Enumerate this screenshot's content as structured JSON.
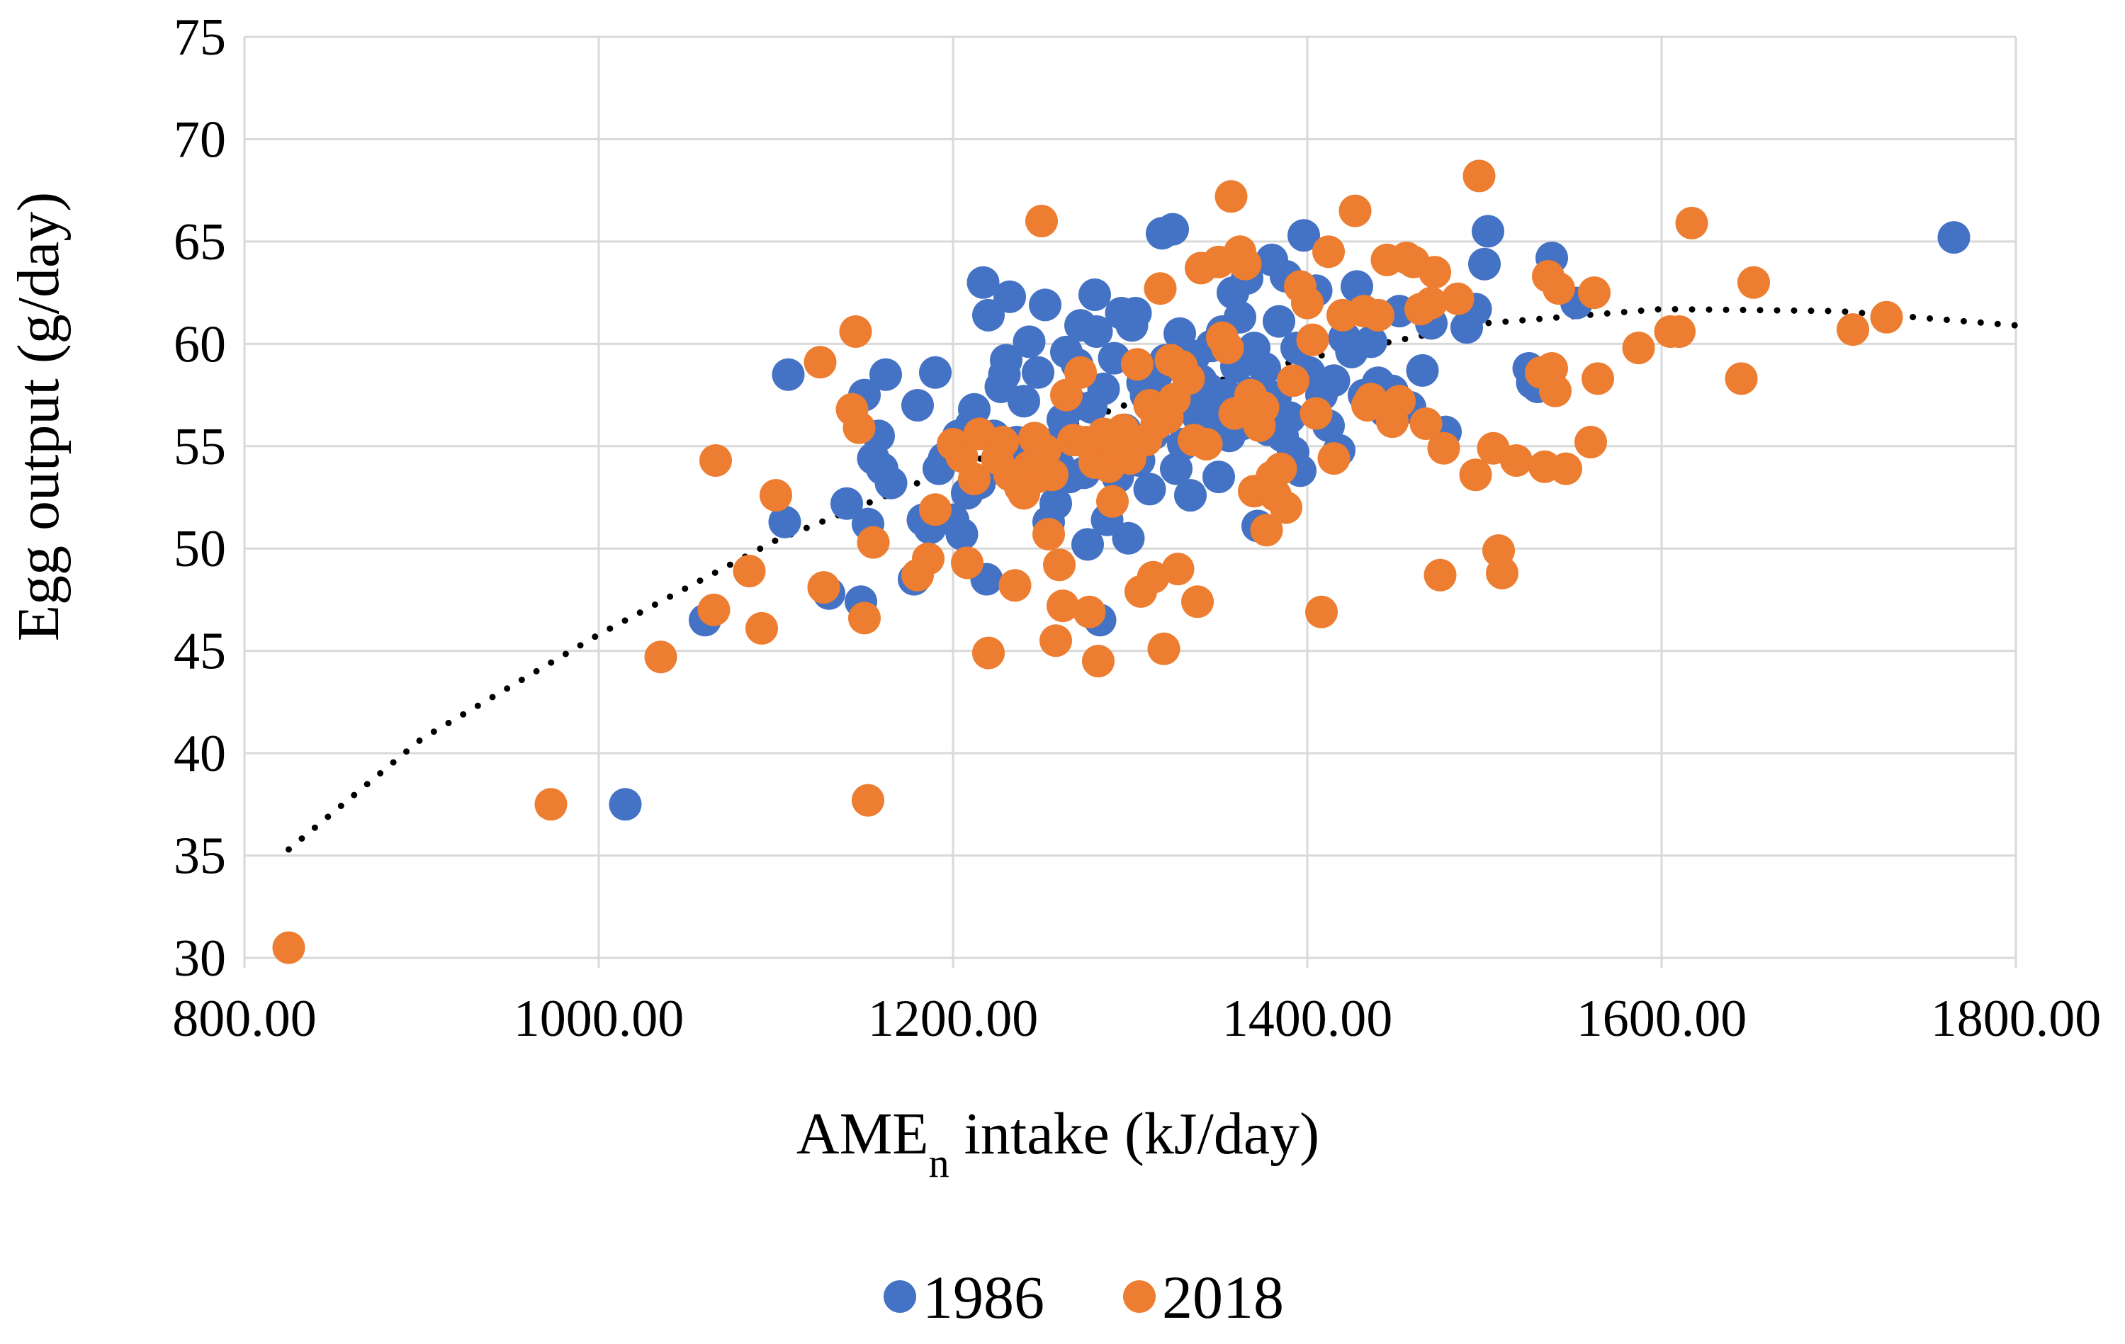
{
  "chart_data": {
    "type": "scatter",
    "title": "",
    "xlabel": "AMEn intake (kJ/day)",
    "xlabel_main": "AME",
    "xlabel_sub": "n",
    "xlabel_rest": " intake (kJ/day)",
    "ylabel": "Egg output (g/day)",
    "xlim": [
      800,
      1800
    ],
    "ylim": [
      30,
      75
    ],
    "xticks": [
      "800.00",
      "1000.00",
      "1200.00",
      "1400.00",
      "1600.00",
      "1800.00"
    ],
    "yticks": [
      "30",
      "35",
      "40",
      "45",
      "50",
      "55",
      "60",
      "65",
      "70",
      "75"
    ],
    "grid": true,
    "legend_position": "bottom",
    "trendline": {
      "style": "dotted",
      "color": "#000000",
      "points": [
        [
          825,
          35.3
        ],
        [
          900,
          40.7
        ],
        [
          1000,
          45.8
        ],
        [
          1100,
          50.4
        ],
        [
          1200,
          53.9
        ],
        [
          1300,
          57.1
        ],
        [
          1400,
          59.3
        ],
        [
          1500,
          61.0
        ],
        [
          1600,
          61.7
        ],
        [
          1700,
          61.6
        ],
        [
          1800,
          60.9
        ]
      ]
    },
    "series": [
      {
        "name": "1986",
        "color": "#4472c4",
        "points": [
          [
            1015,
            37.5
          ],
          [
            1060,
            46.5
          ],
          [
            1105,
            51.3
          ],
          [
            1107,
            58.5
          ],
          [
            1130,
            47.8
          ],
          [
            1140,
            52.2
          ],
          [
            1148,
            47.4
          ],
          [
            1150,
            57.5
          ],
          [
            1152,
            51.2
          ],
          [
            1155,
            54.4
          ],
          [
            1158,
            55.5
          ],
          [
            1160,
            53.9
          ],
          [
            1162,
            58.5
          ],
          [
            1165,
            53.2
          ],
          [
            1178,
            48.5
          ],
          [
            1180,
            57.0
          ],
          [
            1183,
            51.4
          ],
          [
            1187,
            51.0
          ],
          [
            1190,
            58.6
          ],
          [
            1192,
            53.9
          ],
          [
            1195,
            54.4
          ],
          [
            1200,
            51.4
          ],
          [
            1203,
            55.5
          ],
          [
            1205,
            50.7
          ],
          [
            1208,
            52.7
          ],
          [
            1210,
            56.0
          ],
          [
            1212,
            56.8
          ],
          [
            1215,
            53.2
          ],
          [
            1217,
            63.0
          ],
          [
            1219,
            48.5
          ],
          [
            1220,
            61.4
          ],
          [
            1223,
            55.5
          ],
          [
            1225,
            54.4
          ],
          [
            1227,
            57.9
          ],
          [
            1229,
            58.5
          ],
          [
            1230,
            59.2
          ],
          [
            1232,
            62.3
          ],
          [
            1234,
            54.6
          ],
          [
            1236,
            55.2
          ],
          [
            1238,
            53.0
          ],
          [
            1240,
            57.2
          ],
          [
            1243,
            60.1
          ],
          [
            1246,
            53.9
          ],
          [
            1248,
            58.6
          ],
          [
            1250,
            55.0
          ],
          [
            1252,
            61.9
          ],
          [
            1254,
            51.3
          ],
          [
            1256,
            55.1
          ],
          [
            1258,
            52.2
          ],
          [
            1260,
            54.0
          ],
          [
            1262,
            56.3
          ],
          [
            1264,
            59.6
          ],
          [
            1266,
            53.5
          ],
          [
            1268,
            57.0
          ],
          [
            1270,
            59.0
          ],
          [
            1272,
            60.9
          ],
          [
            1274,
            53.7
          ],
          [
            1276,
            50.2
          ],
          [
            1278,
            56.9
          ],
          [
            1280,
            62.4
          ],
          [
            1281,
            60.6
          ],
          [
            1283,
            46.5
          ],
          [
            1285,
            57.8
          ],
          [
            1287,
            51.4
          ],
          [
            1289,
            55.4
          ],
          [
            1291,
            59.3
          ],
          [
            1293,
            53.5
          ],
          [
            1295,
            61.5
          ],
          [
            1297,
            55.8
          ],
          [
            1299,
            50.5
          ],
          [
            1301,
            60.9
          ],
          [
            1303,
            61.5
          ],
          [
            1305,
            54.3
          ],
          [
            1307,
            58.1
          ],
          [
            1309,
            57.5
          ],
          [
            1311,
            52.9
          ],
          [
            1313,
            55.6
          ],
          [
            1315,
            58.5
          ],
          [
            1318,
            65.4
          ],
          [
            1320,
            59.2
          ],
          [
            1322,
            57.1
          ],
          [
            1324,
            65.6
          ],
          [
            1326,
            53.9
          ],
          [
            1328,
            60.5
          ],
          [
            1330,
            55.1
          ],
          [
            1332,
            57.6
          ],
          [
            1334,
            52.6
          ],
          [
            1336,
            59.4
          ],
          [
            1338,
            56.5
          ],
          [
            1340,
            58.2
          ],
          [
            1342,
            55.7
          ],
          [
            1344,
            57.8
          ],
          [
            1346,
            59.9
          ],
          [
            1348,
            56.3
          ],
          [
            1350,
            53.5
          ],
          [
            1352,
            60.6
          ],
          [
            1354,
            57.5
          ],
          [
            1356,
            55.5
          ],
          [
            1358,
            62.5
          ],
          [
            1360,
            58.9
          ],
          [
            1362,
            61.3
          ],
          [
            1364,
            56.1
          ],
          [
            1366,
            63.2
          ],
          [
            1368,
            57.6
          ],
          [
            1370,
            59.8
          ],
          [
            1372,
            51.1
          ],
          [
            1374,
            56.4
          ],
          [
            1376,
            58.8
          ],
          [
            1378,
            55.8
          ],
          [
            1380,
            64.1
          ],
          [
            1382,
            57.4
          ],
          [
            1384,
            61.1
          ],
          [
            1386,
            55.5
          ],
          [
            1388,
            63.3
          ],
          [
            1390,
            56.4
          ],
          [
            1392,
            54.7
          ],
          [
            1394,
            59.8
          ],
          [
            1396,
            53.8
          ],
          [
            1398,
            65.3
          ],
          [
            1401,
            58.6
          ],
          [
            1405,
            62.6
          ],
          [
            1408,
            57.5
          ],
          [
            1412,
            56.0
          ],
          [
            1415,
            58.2
          ],
          [
            1418,
            54.8
          ],
          [
            1421,
            60.3
          ],
          [
            1425,
            59.6
          ],
          [
            1428,
            62.8
          ],
          [
            1432,
            57.5
          ],
          [
            1436,
            60.1
          ],
          [
            1440,
            58.1
          ],
          [
            1444,
            56.7
          ],
          [
            1448,
            57.7
          ],
          [
            1452,
            61.6
          ],
          [
            1458,
            56.9
          ],
          [
            1465,
            58.7
          ],
          [
            1470,
            61.0
          ],
          [
            1478,
            55.7
          ],
          [
            1490,
            60.8
          ],
          [
            1495,
            61.7
          ],
          [
            1500,
            63.9
          ],
          [
            1502,
            65.5
          ],
          [
            1525,
            58.8
          ],
          [
            1527,
            58.1
          ],
          [
            1530,
            57.9
          ],
          [
            1538,
            64.2
          ],
          [
            1552,
            62.0
          ],
          [
            1765,
            65.2
          ]
        ]
      },
      {
        "name": "2018",
        "color": "#ed7d31",
        "points": [
          [
            825,
            30.5
          ],
          [
            973,
            37.5
          ],
          [
            1035,
            44.7
          ],
          [
            1065,
            47.0
          ],
          [
            1066,
            54.3
          ],
          [
            1085,
            48.9
          ],
          [
            1092,
            46.1
          ],
          [
            1100,
            52.6
          ],
          [
            1125,
            59.1
          ],
          [
            1127,
            48.1
          ],
          [
            1143,
            56.8
          ],
          [
            1145,
            60.6
          ],
          [
            1147,
            55.9
          ],
          [
            1150,
            46.6
          ],
          [
            1152,
            37.7
          ],
          [
            1155,
            50.3
          ],
          [
            1180,
            48.7
          ],
          [
            1186,
            49.5
          ],
          [
            1190,
            51.9
          ],
          [
            1200,
            55.1
          ],
          [
            1205,
            54.5
          ],
          [
            1208,
            49.3
          ],
          [
            1212,
            53.4
          ],
          [
            1215,
            55.6
          ],
          [
            1220,
            44.9
          ],
          [
            1225,
            54.4
          ],
          [
            1228,
            55.2
          ],
          [
            1232,
            53.6
          ],
          [
            1235,
            48.2
          ],
          [
            1238,
            53.0
          ],
          [
            1240,
            52.7
          ],
          [
            1243,
            54.0
          ],
          [
            1246,
            55.4
          ],
          [
            1248,
            53.5
          ],
          [
            1250,
            66.0
          ],
          [
            1252,
            54.8
          ],
          [
            1254,
            50.7
          ],
          [
            1256,
            53.6
          ],
          [
            1258,
            45.5
          ],
          [
            1260,
            49.2
          ],
          [
            1262,
            47.2
          ],
          [
            1264,
            57.5
          ],
          [
            1268,
            55.3
          ],
          [
            1272,
            58.6
          ],
          [
            1275,
            55.2
          ],
          [
            1277,
            46.9
          ],
          [
            1280,
            54.2
          ],
          [
            1282,
            44.5
          ],
          [
            1285,
            55.6
          ],
          [
            1288,
            54.0
          ],
          [
            1290,
            52.3
          ],
          [
            1293,
            55.1
          ],
          [
            1296,
            55.8
          ],
          [
            1300,
            54.4
          ],
          [
            1304,
            59.0
          ],
          [
            1306,
            47.9
          ],
          [
            1309,
            55.3
          ],
          [
            1311,
            57.0
          ],
          [
            1313,
            48.6
          ],
          [
            1315,
            56.1
          ],
          [
            1317,
            62.7
          ],
          [
            1319,
            45.1
          ],
          [
            1321,
            56.4
          ],
          [
            1323,
            59.2
          ],
          [
            1325,
            57.3
          ],
          [
            1327,
            49.0
          ],
          [
            1329,
            58.9
          ],
          [
            1333,
            58.3
          ],
          [
            1336,
            55.3
          ],
          [
            1338,
            47.4
          ],
          [
            1340,
            63.7
          ],
          [
            1343,
            55.1
          ],
          [
            1350,
            64.0
          ],
          [
            1352,
            60.3
          ],
          [
            1355,
            59.8
          ],
          [
            1357,
            67.2
          ],
          [
            1359,
            56.6
          ],
          [
            1362,
            64.5
          ],
          [
            1365,
            63.9
          ],
          [
            1368,
            57.5
          ],
          [
            1370,
            52.8
          ],
          [
            1373,
            56.0
          ],
          [
            1375,
            56.9
          ],
          [
            1377,
            50.9
          ],
          [
            1380,
            53.5
          ],
          [
            1382,
            52.6
          ],
          [
            1385,
            53.9
          ],
          [
            1388,
            52.0
          ],
          [
            1392,
            58.2
          ],
          [
            1396,
            62.8
          ],
          [
            1400,
            62.0
          ],
          [
            1403,
            60.2
          ],
          [
            1405,
            56.6
          ],
          [
            1408,
            46.9
          ],
          [
            1412,
            64.5
          ],
          [
            1415,
            54.4
          ],
          [
            1420,
            61.4
          ],
          [
            1427,
            66.5
          ],
          [
            1432,
            61.6
          ],
          [
            1434,
            57.0
          ],
          [
            1436,
            57.3
          ],
          [
            1440,
            61.4
          ],
          [
            1445,
            64.1
          ],
          [
            1448,
            56.2
          ],
          [
            1452,
            57.2
          ],
          [
            1456,
            64.2
          ],
          [
            1460,
            64.0
          ],
          [
            1464,
            61.7
          ],
          [
            1467,
            56.1
          ],
          [
            1470,
            62.0
          ],
          [
            1472,
            63.5
          ],
          [
            1475,
            48.7
          ],
          [
            1477,
            54.9
          ],
          [
            1485,
            62.2
          ],
          [
            1495,
            53.6
          ],
          [
            1497,
            68.2
          ],
          [
            1505,
            54.9
          ],
          [
            1508,
            49.9
          ],
          [
            1510,
            48.8
          ],
          [
            1518,
            54.3
          ],
          [
            1532,
            58.6
          ],
          [
            1534,
            54.0
          ],
          [
            1536,
            63.3
          ],
          [
            1538,
            58.8
          ],
          [
            1540,
            57.7
          ],
          [
            1542,
            62.7
          ],
          [
            1546,
            53.9
          ],
          [
            1560,
            55.2
          ],
          [
            1562,
            62.5
          ],
          [
            1564,
            58.3
          ],
          [
            1587,
            59.8
          ],
          [
            1605,
            60.6
          ],
          [
            1610,
            60.6
          ],
          [
            1617,
            65.9
          ],
          [
            1645,
            58.3
          ],
          [
            1652,
            63.0
          ],
          [
            1708,
            60.7
          ],
          [
            1727,
            61.3
          ]
        ]
      }
    ]
  }
}
